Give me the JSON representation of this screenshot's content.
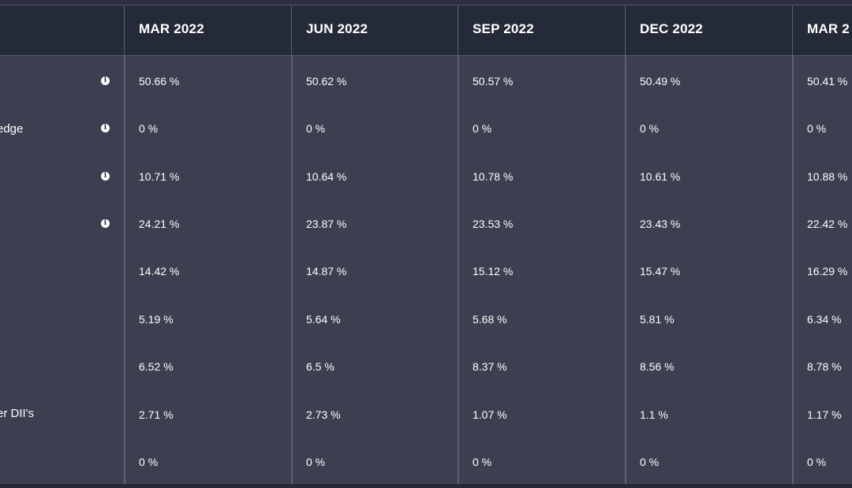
{
  "table": {
    "headers": [
      "MAR 2022",
      "JUN 2022",
      "SEP 2022",
      "DEC 2022",
      "MAR 2"
    ],
    "row_labels": [
      "",
      "edge",
      "",
      "",
      "",
      "",
      "",
      "er DII's",
      ""
    ],
    "rows": [
      [
        "50.66 %",
        "50.62 %",
        "50.57 %",
        "50.49 %",
        "50.41 %"
      ],
      [
        "0 %",
        "0 %",
        "0 %",
        "0 %",
        "0 %"
      ],
      [
        "10.71 %",
        "10.64 %",
        "10.78 %",
        "10.61 %",
        "10.88 %"
      ],
      [
        "24.21 %",
        "23.87 %",
        "23.53 %",
        "23.43 %",
        "22.42 %"
      ],
      [
        "14.42 %",
        "14.87 %",
        "15.12 %",
        "15.47 %",
        "16.29 %"
      ],
      [
        "5.19 %",
        "5.64 %",
        "5.68 %",
        "5.81 %",
        "6.34 %"
      ],
      [
        "6.52 %",
        "6.5 %",
        "8.37 %",
        "8.56 %",
        "8.78 %"
      ],
      [
        "2.71 %",
        "2.73 %",
        "1.07 %",
        "1.1 %",
        "1.17 %"
      ],
      [
        "0 %",
        "0 %",
        "0 %",
        "0 %",
        "0 %"
      ]
    ],
    "info_icon_rows": [
      0,
      1,
      2,
      3
    ]
  },
  "icons": {
    "info": "info-icon"
  },
  "colors": {
    "header_bg": "#252a39",
    "body_bg": "#3b3f4f",
    "divider": "#5a6078",
    "text": "#ffffff"
  }
}
